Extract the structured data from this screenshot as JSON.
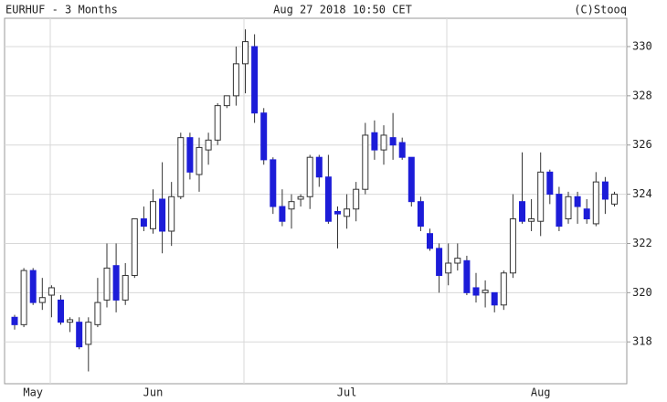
{
  "chart_data": {
    "type": "candlestick",
    "title": "EURHUF - 3 Months",
    "subtitle": "Aug 27 2018 10:50 CET",
    "source": "(C)Stooq",
    "x_labels": [
      "May",
      "Jun",
      "Jul",
      "Aug"
    ],
    "open": [
      319.0,
      318.7,
      320.9,
      319.6,
      319.9,
      319.7,
      318.8,
      318.8,
      317.9,
      318.7,
      319.7,
      321.1,
      319.7,
      320.7,
      323.0,
      322.6,
      323.8,
      322.5,
      323.9,
      326.3,
      324.8,
      325.8,
      326.2,
      327.6,
      328.0,
      329.3,
      330.0,
      327.3,
      325.4,
      323.5,
      323.4,
      323.8,
      323.9,
      325.5,
      324.7,
      323.3,
      323.1,
      323.4,
      324.2,
      326.5,
      325.8,
      326.3,
      326.1,
      325.5,
      323.7,
      322.4,
      321.8,
      320.8,
      321.2,
      321.3,
      320.2,
      320.0,
      320.0,
      319.5,
      320.8,
      323.7,
      322.9,
      322.9,
      324.9,
      324.0,
      323.0,
      323.9,
      323.4,
      322.8,
      324.5,
      323.6
    ],
    "high": [
      319.1,
      321.0,
      321.0,
      320.6,
      320.3,
      319.9,
      319.0,
      319.0,
      319.0,
      320.6,
      322.0,
      322.0,
      321.2,
      323.0,
      323.5,
      324.2,
      325.3,
      324.5,
      326.5,
      326.5,
      326.3,
      326.5,
      327.7,
      328.0,
      330.0,
      330.7,
      330.5,
      327.5,
      325.5,
      324.2,
      324.0,
      324.0,
      325.6,
      325.6,
      325.6,
      323.5,
      324.0,
      324.5,
      326.9,
      327.0,
      326.8,
      327.3,
      326.3,
      325.5,
      323.9,
      322.6,
      322.0,
      322.0,
      322.0,
      321.5,
      320.8,
      320.5,
      320.0,
      320.9,
      324.0,
      325.7,
      323.8,
      325.7,
      325.0,
      324.3,
      324.1,
      324.1,
      323.8,
      324.9,
      324.7,
      324.1
    ],
    "low": [
      318.5,
      318.6,
      319.5,
      319.3,
      319.0,
      318.7,
      318.4,
      317.7,
      316.8,
      318.6,
      319.4,
      319.2,
      319.5,
      320.6,
      322.5,
      322.4,
      321.6,
      321.9,
      323.8,
      324.6,
      324.1,
      325.2,
      326.0,
      327.5,
      327.6,
      328.1,
      326.9,
      325.2,
      323.2,
      322.7,
      322.6,
      323.5,
      323.4,
      324.3,
      322.8,
      321.8,
      322.6,
      322.9,
      324.0,
      325.4,
      325.2,
      325.4,
      325.4,
      323.5,
      322.5,
      321.7,
      320.0,
      320.3,
      320.9,
      319.9,
      319.6,
      319.4,
      319.2,
      319.3,
      320.6,
      322.8,
      322.5,
      322.3,
      323.6,
      322.5,
      322.8,
      322.8,
      322.8,
      322.7,
      323.2,
      323.5
    ],
    "close": [
      318.7,
      320.9,
      319.6,
      319.8,
      320.2,
      318.8,
      318.9,
      317.8,
      318.8,
      319.6,
      321.0,
      319.7,
      320.7,
      323.0,
      322.7,
      323.7,
      322.5,
      323.9,
      326.3,
      324.9,
      325.9,
      326.2,
      327.6,
      328.0,
      329.3,
      330.2,
      327.3,
      325.4,
      323.5,
      322.9,
      323.7,
      323.9,
      325.5,
      324.7,
      322.9,
      323.2,
      323.4,
      324.2,
      326.4,
      325.8,
      326.4,
      326.0,
      325.5,
      323.7,
      322.7,
      321.8,
      320.7,
      321.2,
      321.4,
      320.0,
      319.9,
      320.1,
      319.5,
      320.8,
      323.0,
      322.9,
      323.0,
      324.9,
      324.0,
      322.7,
      323.9,
      323.5,
      323.0,
      324.5,
      323.8,
      324.0
    ],
    "up_color": "#ffffff",
    "down_color": "#1c1cd8",
    "wick_color": "#333333",
    "ylim": [
      316.3,
      331.15
    ],
    "yticks": [
      318,
      320,
      322,
      324,
      326,
      328,
      330
    ],
    "grid": true
  }
}
